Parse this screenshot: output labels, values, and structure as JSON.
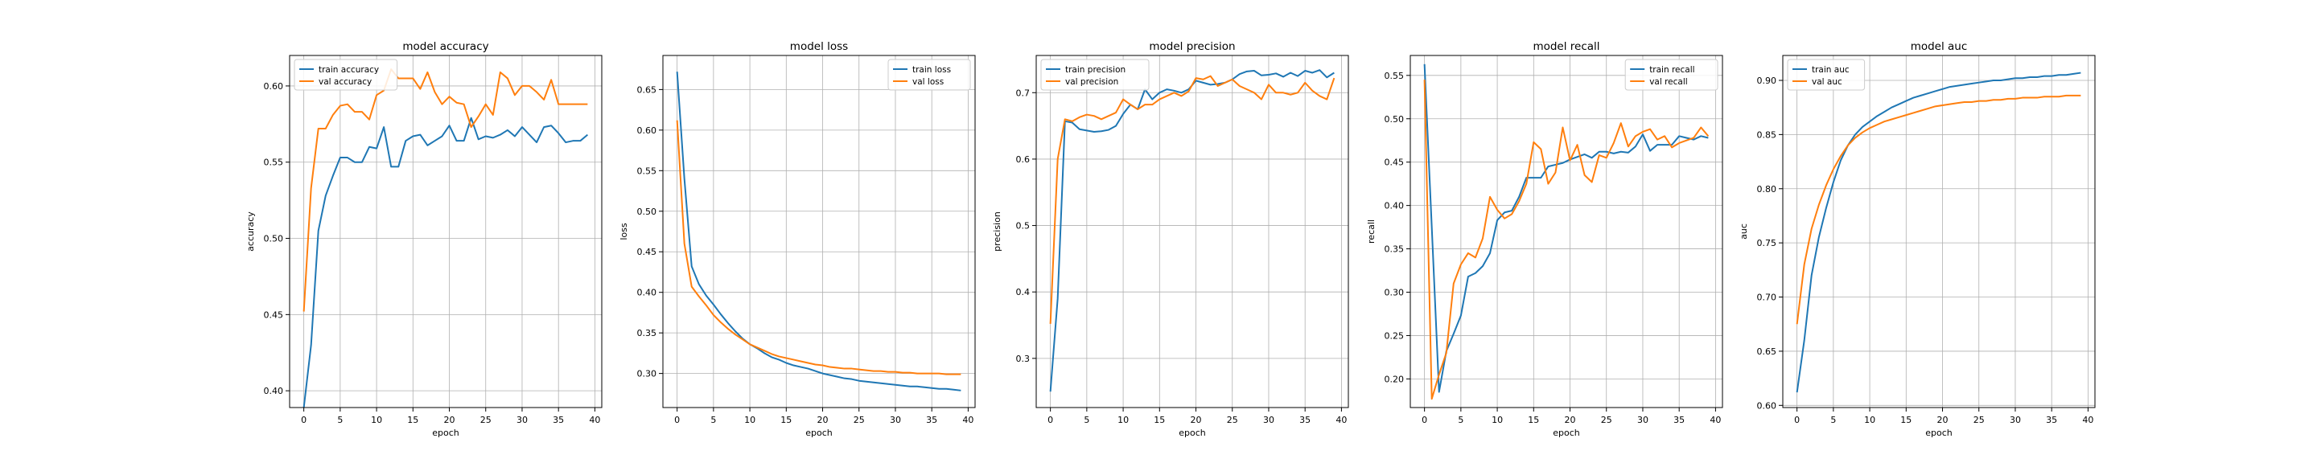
{
  "colors": {
    "train": "#1f77b4",
    "val": "#ff7f0e",
    "grid": "#b0b0b0",
    "axis": "#000000"
  },
  "chart_data": [
    {
      "type": "line",
      "title": "model accuracy",
      "xlabel": "epoch",
      "ylabel": "accuracy",
      "xlim": [
        -1.95,
        40.95
      ],
      "ylim": [
        0.389,
        0.62
      ],
      "xticks": [
        0,
        5,
        10,
        15,
        20,
        25,
        30,
        35,
        40
      ],
      "yticks": [
        0.4,
        0.45,
        0.5,
        0.55,
        0.6
      ],
      "yticklabels": [
        "0.40",
        "0.45",
        "0.50",
        "0.55",
        "0.60"
      ],
      "grid": true,
      "legend": "upper left",
      "x": [
        0,
        1,
        2,
        3,
        4,
        5,
        6,
        7,
        8,
        9,
        10,
        11,
        12,
        13,
        14,
        15,
        16,
        17,
        18,
        19,
        20,
        21,
        22,
        23,
        24,
        25,
        26,
        27,
        28,
        29,
        30,
        31,
        32,
        33,
        34,
        35,
        36,
        37,
        38,
        39
      ],
      "series": [
        {
          "name": "train accuracy",
          "values": [
            0.389,
            0.43,
            0.505,
            0.528,
            0.541,
            0.553,
            0.553,
            0.55,
            0.55,
            0.56,
            0.559,
            0.573,
            0.547,
            0.547,
            0.564,
            0.567,
            0.568,
            0.561,
            0.564,
            0.567,
            0.574,
            0.564,
            0.564,
            0.579,
            0.565,
            0.567,
            0.566,
            0.568,
            0.571,
            0.567,
            0.573,
            0.568,
            0.563,
            0.573,
            0.574,
            0.569,
            0.563,
            0.564,
            0.564,
            0.568
          ]
        },
        {
          "name": "val accuracy",
          "values": [
            0.452,
            0.533,
            0.572,
            0.572,
            0.581,
            0.587,
            0.588,
            0.583,
            0.583,
            0.578,
            0.594,
            0.597,
            0.611,
            0.605,
            0.605,
            0.605,
            0.598,
            0.609,
            0.596,
            0.588,
            0.593,
            0.589,
            0.588,
            0.573,
            0.58,
            0.588,
            0.581,
            0.609,
            0.605,
            0.594,
            0.6,
            0.6,
            0.596,
            0.591,
            0.604,
            0.588,
            0.588,
            0.588,
            0.588,
            0.588
          ]
        }
      ]
    },
    {
      "type": "line",
      "title": "model loss",
      "xlabel": "epoch",
      "ylabel": "loss",
      "xlim": [
        -1.95,
        40.95
      ],
      "ylim": [
        0.258,
        0.692
      ],
      "xticks": [
        0,
        5,
        10,
        15,
        20,
        25,
        30,
        35,
        40
      ],
      "yticks": [
        0.3,
        0.35,
        0.4,
        0.45,
        0.5,
        0.55,
        0.6,
        0.65
      ],
      "yticklabels": [
        "0.30",
        "0.35",
        "0.40",
        "0.45",
        "0.50",
        "0.55",
        "0.60",
        "0.65"
      ],
      "grid": true,
      "legend": "upper right",
      "x": [
        0,
        1,
        2,
        3,
        4,
        5,
        6,
        7,
        8,
        9,
        10,
        11,
        12,
        13,
        14,
        15,
        16,
        17,
        18,
        19,
        20,
        21,
        22,
        23,
        24,
        25,
        26,
        27,
        28,
        29,
        30,
        31,
        32,
        33,
        34,
        35,
        36,
        37,
        38,
        39
      ],
      "series": [
        {
          "name": "train loss",
          "values": [
            0.672,
            0.54,
            0.432,
            0.41,
            0.396,
            0.385,
            0.373,
            0.362,
            0.352,
            0.343,
            0.336,
            0.331,
            0.325,
            0.32,
            0.317,
            0.313,
            0.31,
            0.308,
            0.306,
            0.303,
            0.3,
            0.298,
            0.296,
            0.294,
            0.293,
            0.291,
            0.29,
            0.289,
            0.288,
            0.287,
            0.286,
            0.285,
            0.284,
            0.284,
            0.283,
            0.282,
            0.281,
            0.281,
            0.28,
            0.279
          ]
        },
        {
          "name": "val loss",
          "values": [
            0.612,
            0.46,
            0.407,
            0.395,
            0.384,
            0.372,
            0.363,
            0.355,
            0.348,
            0.342,
            0.336,
            0.332,
            0.328,
            0.324,
            0.321,
            0.319,
            0.317,
            0.315,
            0.313,
            0.311,
            0.31,
            0.308,
            0.307,
            0.306,
            0.306,
            0.305,
            0.304,
            0.303,
            0.303,
            0.302,
            0.302,
            0.301,
            0.301,
            0.3,
            0.3,
            0.3,
            0.3,
            0.299,
            0.299,
            0.299
          ]
        }
      ]
    },
    {
      "type": "line",
      "title": "model precision",
      "xlabel": "epoch",
      "ylabel": "precision",
      "xlim": [
        -1.95,
        40.95
      ],
      "ylim": [
        0.226,
        0.756
      ],
      "xticks": [
        0,
        5,
        10,
        15,
        20,
        25,
        30,
        35,
        40
      ],
      "yticks": [
        0.3,
        0.4,
        0.5,
        0.6,
        0.7
      ],
      "yticklabels": [
        "0.3",
        "0.4",
        "0.5",
        "0.6",
        "0.7"
      ],
      "grid": true,
      "legend": "upper left",
      "x": [
        0,
        1,
        2,
        3,
        4,
        5,
        6,
        7,
        8,
        9,
        10,
        11,
        12,
        13,
        14,
        15,
        16,
        17,
        18,
        19,
        20,
        21,
        22,
        23,
        24,
        25,
        26,
        27,
        28,
        29,
        30,
        31,
        32,
        33,
        34,
        35,
        36,
        37,
        38,
        39
      ],
      "series": [
        {
          "name": "train precision",
          "values": [
            0.25,
            0.39,
            0.657,
            0.655,
            0.645,
            0.643,
            0.641,
            0.642,
            0.644,
            0.65,
            0.668,
            0.682,
            0.675,
            0.705,
            0.69,
            0.7,
            0.705,
            0.703,
            0.7,
            0.705,
            0.718,
            0.715,
            0.712,
            0.713,
            0.715,
            0.72,
            0.728,
            0.732,
            0.733,
            0.726,
            0.727,
            0.729,
            0.724,
            0.73,
            0.725,
            0.733,
            0.73,
            0.734,
            0.723,
            0.73
          ]
        },
        {
          "name": "val precision",
          "values": [
            0.352,
            0.6,
            0.66,
            0.657,
            0.663,
            0.667,
            0.665,
            0.66,
            0.665,
            0.67,
            0.69,
            0.682,
            0.675,
            0.682,
            0.682,
            0.69,
            0.695,
            0.7,
            0.695,
            0.702,
            0.722,
            0.72,
            0.725,
            0.71,
            0.715,
            0.72,
            0.71,
            0.705,
            0.7,
            0.69,
            0.712,
            0.7,
            0.7,
            0.697,
            0.7,
            0.715,
            0.703,
            0.695,
            0.69,
            0.722
          ]
        }
      ]
    },
    {
      "type": "line",
      "title": "model recall",
      "xlabel": "epoch",
      "ylabel": "recall",
      "xlim": [
        -1.95,
        40.95
      ],
      "ylim": [
        0.167,
        0.573
      ],
      "xticks": [
        0,
        5,
        10,
        15,
        20,
        25,
        30,
        35,
        40
      ],
      "yticks": [
        0.2,
        0.25,
        0.3,
        0.35,
        0.4,
        0.45,
        0.5,
        0.55
      ],
      "yticklabels": [
        "0.20",
        "0.25",
        "0.30",
        "0.35",
        "0.40",
        "0.45",
        "0.50",
        "0.55"
      ],
      "grid": true,
      "legend": "upper right",
      "x": [
        0,
        1,
        2,
        3,
        4,
        5,
        6,
        7,
        8,
        9,
        10,
        11,
        12,
        13,
        14,
        15,
        16,
        17,
        18,
        19,
        20,
        21,
        22,
        23,
        24,
        25,
        26,
        27,
        28,
        29,
        30,
        31,
        32,
        33,
        34,
        35,
        36,
        37,
        38,
        39
      ],
      "series": [
        {
          "name": "train recall",
          "values": [
            0.563,
            0.375,
            0.185,
            0.232,
            0.252,
            0.273,
            0.318,
            0.322,
            0.33,
            0.345,
            0.383,
            0.392,
            0.394,
            0.41,
            0.432,
            0.432,
            0.432,
            0.445,
            0.447,
            0.449,
            0.453,
            0.456,
            0.459,
            0.455,
            0.462,
            0.462,
            0.46,
            0.462,
            0.461,
            0.468,
            0.482,
            0.463,
            0.47,
            0.47,
            0.47,
            0.48,
            0.478,
            0.476,
            0.48,
            0.478
          ]
        },
        {
          "name": "val recall",
          "values": [
            0.545,
            0.177,
            0.205,
            0.23,
            0.31,
            0.332,
            0.345,
            0.34,
            0.362,
            0.41,
            0.395,
            0.385,
            0.39,
            0.405,
            0.425,
            0.473,
            0.465,
            0.425,
            0.438,
            0.49,
            0.452,
            0.47,
            0.435,
            0.427,
            0.458,
            0.455,
            0.472,
            0.495,
            0.468,
            0.48,
            0.485,
            0.488,
            0.476,
            0.48,
            0.467,
            0.472,
            0.475,
            0.478,
            0.49,
            0.48
          ]
        }
      ]
    },
    {
      "type": "line",
      "title": "model auc",
      "xlabel": "epoch",
      "ylabel": "auc",
      "xlim": [
        -1.95,
        40.95
      ],
      "ylim": [
        0.598,
        0.923
      ],
      "xticks": [
        0,
        5,
        10,
        15,
        20,
        25,
        30,
        35,
        40
      ],
      "yticks": [
        0.6,
        0.65,
        0.7,
        0.75,
        0.8,
        0.85,
        0.9
      ],
      "yticklabels": [
        "0.60",
        "0.65",
        "0.70",
        "0.75",
        "0.80",
        "0.85",
        "0.90"
      ],
      "grid": true,
      "legend": "upper left",
      "x": [
        0,
        1,
        2,
        3,
        4,
        5,
        6,
        7,
        8,
        9,
        10,
        11,
        12,
        13,
        14,
        15,
        16,
        17,
        18,
        19,
        20,
        21,
        22,
        23,
        24,
        25,
        26,
        27,
        28,
        29,
        30,
        31,
        32,
        33,
        34,
        35,
        36,
        37,
        38,
        39
      ],
      "series": [
        {
          "name": "train auc",
          "values": [
            0.612,
            0.66,
            0.72,
            0.755,
            0.782,
            0.806,
            0.826,
            0.84,
            0.85,
            0.857,
            0.862,
            0.867,
            0.871,
            0.875,
            0.878,
            0.881,
            0.884,
            0.886,
            0.888,
            0.89,
            0.892,
            0.894,
            0.895,
            0.896,
            0.897,
            0.898,
            0.899,
            0.9,
            0.9,
            0.901,
            0.902,
            0.902,
            0.903,
            0.903,
            0.904,
            0.904,
            0.905,
            0.905,
            0.906,
            0.907
          ]
        },
        {
          "name": "val auc",
          "values": [
            0.675,
            0.73,
            0.763,
            0.785,
            0.803,
            0.818,
            0.83,
            0.84,
            0.847,
            0.852,
            0.856,
            0.859,
            0.862,
            0.864,
            0.866,
            0.868,
            0.87,
            0.872,
            0.874,
            0.876,
            0.877,
            0.878,
            0.879,
            0.88,
            0.88,
            0.881,
            0.881,
            0.882,
            0.882,
            0.883,
            0.883,
            0.884,
            0.884,
            0.884,
            0.885,
            0.885,
            0.885,
            0.886,
            0.886,
            0.886
          ]
        }
      ]
    }
  ]
}
